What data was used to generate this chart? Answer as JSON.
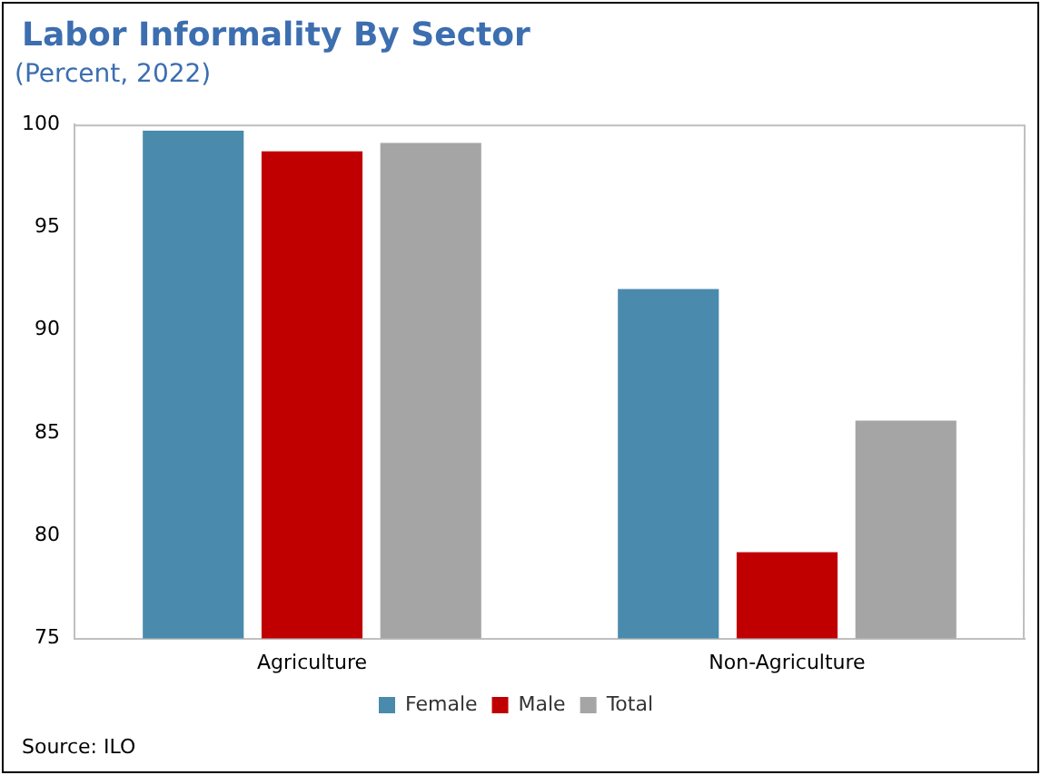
{
  "chart_data": {
    "type": "bar",
    "title": "Labor Informality By Sector",
    "subtitle": "(Percent, 2022)",
    "categories": [
      "Agriculture",
      "Non-Agriculture"
    ],
    "series": [
      {
        "name": "Female",
        "color": "#4a8aad",
        "values": [
          99.7,
          92.0
        ]
      },
      {
        "name": "Male",
        "color": "#c00000",
        "values": [
          98.7,
          79.2
        ]
      },
      {
        "name": "Total",
        "color": "#a5a5a5",
        "values": [
          99.1,
          85.6
        ]
      }
    ],
    "ylim": [
      75,
      100
    ],
    "yticks": [
      75,
      80,
      85,
      90,
      95,
      100
    ],
    "grid": false,
    "legend": "bottom",
    "annotations": [
      "Source: ILO"
    ]
  }
}
